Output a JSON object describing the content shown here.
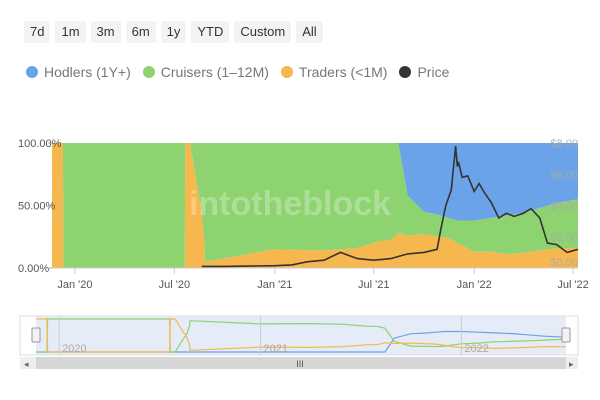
{
  "range_buttons": [
    "7d",
    "1m",
    "3m",
    "6m",
    "1y",
    "YTD",
    "Custom",
    "All"
  ],
  "colors": {
    "hodlers": "#6aa3e8",
    "cruisers": "#8dd370",
    "traders": "#f6b84e",
    "price": "#333333"
  },
  "watermark": "intotheblock",
  "chart_data": {
    "type": "area",
    "title": "",
    "stacked_percent": true,
    "legend_position": "top-left",
    "x_ticks": [
      "Jan '20",
      "Jul '20",
      "Jan '21",
      "Jul '21",
      "Jan '22",
      "Jul '22"
    ],
    "y_left_ticks": [
      "0.00%",
      "50.00%",
      "100.00%"
    ],
    "y_right_ticks": [
      "$0.00",
      "$2.00",
      "$4.00",
      "$6.00",
      "$8.00"
    ],
    "y_left_range": [
      0,
      100
    ],
    "y_right_range": [
      0,
      8
    ],
    "navigator_years": [
      "2020",
      "2021",
      "2022"
    ],
    "navigator_scroll": "III",
    "x_dates": [
      "2019-11-20",
      "2019-12-10",
      "2019-12-11",
      "2020-07-20",
      "2020-07-21",
      "2020-07-30",
      "2020-08-10",
      "2020-08-20",
      "2020-08-25",
      "2020-08-26",
      "2021-01-01",
      "2021-04-01",
      "2021-06-01",
      "2021-07-15",
      "2021-08-01",
      "2021-08-15",
      "2021-09-01",
      "2021-10-01",
      "2021-11-01",
      "2021-11-15",
      "2021-12-01",
      "2022-01-01",
      "2022-02-01",
      "2022-03-01",
      "2022-04-01",
      "2022-05-01",
      "2022-06-01",
      "2022-07-10"
    ],
    "series": [
      {
        "name": "Hodlers (1Y+)",
        "color": "#6aa3e8",
        "values": [
          0,
          0,
          0,
          0,
          0,
          0,
          0,
          0,
          0,
          0,
          0,
          0,
          0,
          0,
          0,
          0,
          42,
          55,
          58,
          60,
          62,
          62,
          60,
          58,
          56,
          52,
          48,
          45
        ]
      },
      {
        "name": "Cruisers (1–12M)",
        "color": "#8dd370",
        "values": [
          0,
          0,
          100,
          100,
          0,
          0,
          30,
          55,
          80,
          95,
          85,
          86,
          84,
          78,
          78,
          72,
          32,
          18,
          17,
          16,
          18,
          25,
          27,
          31,
          32,
          34,
          36,
          39
        ]
      },
      {
        "name": "Traders (<1M)",
        "color": "#f6b84e",
        "values": [
          100,
          100,
          0,
          0,
          100,
          100,
          70,
          45,
          20,
          5,
          15,
          14,
          16,
          22,
          22,
          28,
          26,
          27,
          25,
          24,
          20,
          13,
          13,
          11,
          12,
          14,
          16,
          16
        ]
      }
    ],
    "price": {
      "name": "Price",
      "color": "#333333",
      "dates": [
        "2020-08-20",
        "2020-10-01",
        "2021-01-01",
        "2021-02-01",
        "2021-03-01",
        "2021-04-01",
        "2021-05-01",
        "2021-06-01",
        "2021-07-01",
        "2021-08-01",
        "2021-09-01",
        "2021-10-01",
        "2021-10-25",
        "2021-11-01",
        "2021-11-10",
        "2021-11-20",
        "2021-11-28",
        "2021-12-01",
        "2021-12-03",
        "2021-12-10",
        "2021-12-20",
        "2022-01-01",
        "2022-01-10",
        "2022-01-20",
        "2022-02-01",
        "2022-02-15",
        "2022-03-01",
        "2022-03-15",
        "2022-04-01",
        "2022-04-15",
        "2022-05-01",
        "2022-05-15",
        "2022-06-01",
        "2022-06-20",
        "2022-07-10"
      ],
      "values": [
        0.1,
        0.1,
        0.15,
        0.2,
        0.4,
        0.5,
        1.0,
        0.6,
        0.5,
        0.6,
        0.9,
        1.0,
        1.2,
        2.5,
        4.0,
        5.0,
        7.8,
        6.5,
        6.8,
        5.8,
        5.9,
        4.9,
        5.4,
        4.8,
        4.2,
        3.2,
        3.5,
        3.3,
        3.5,
        3.8,
        3.2,
        1.6,
        1.5,
        1.0,
        1.2
      ]
    }
  }
}
